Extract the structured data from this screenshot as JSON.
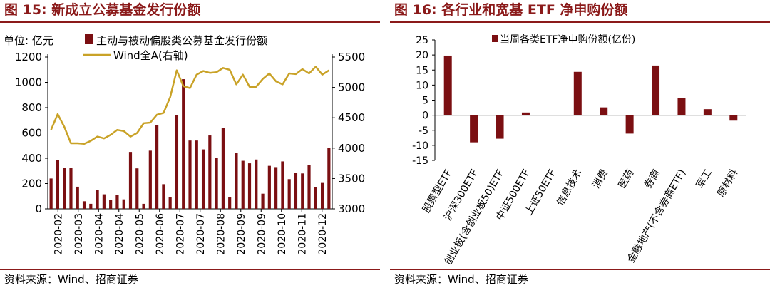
{
  "left": {
    "title": "图 15:  新成立公募基金发行份额",
    "source": "资料来源：Wind、招商证券",
    "chart_data": {
      "type": "bar+line",
      "unit_label": "单位:  亿元",
      "bar_series": {
        "name": "主动与被动偏股类公募基金发行份额",
        "color": "#7B0F12",
        "values": [
          240,
          385,
          325,
          325,
          175,
          60,
          40,
          150,
          115,
          70,
          110,
          75,
          450,
          320,
          40,
          460,
          660,
          195,
          90,
          740,
          1025,
          540,
          540,
          470,
          580,
          400,
          640,
          90,
          440,
          380,
          360,
          390,
          120,
          340,
          330,
          375,
          235,
          285,
          280,
          345,
          170,
          205,
          480
        ]
      },
      "line_series": {
        "name": "Wind全A(右轴)",
        "color": "#C9A227",
        "values": [
          4300,
          4560,
          4350,
          4080,
          4080,
          4070,
          4120,
          4190,
          4160,
          4220,
          4300,
          4280,
          4190,
          4250,
          4410,
          4420,
          4550,
          4580,
          4840,
          5280,
          5020,
          4990,
          5210,
          5270,
          5240,
          5250,
          5320,
          5290,
          5050,
          5210,
          5010,
          5010,
          5140,
          5230,
          5100,
          5050,
          5230,
          5220,
          5300,
          5230,
          5340,
          5210,
          5280
        ]
      },
      "y_left": {
        "min": 0,
        "max": 1200,
        "ticks": [
          "0",
          "200",
          "400",
          "600",
          "800",
          "1000",
          "1200"
        ]
      },
      "y_right": {
        "min": 3000,
        "max": 5500,
        "ticks": [
          "3000",
          "3500",
          "4000",
          "4500",
          "5000",
          "5500"
        ]
      },
      "x_labels": [
        "2020-02",
        "2020-03",
        "2020-04",
        "2020-04",
        "2020-05",
        "2020-06",
        "2020-07",
        "2020-07",
        "2020-08",
        "2020-09",
        "2020-09",
        "2020-10",
        "2020-11",
        "2020-12"
      ]
    }
  },
  "right": {
    "title": "图 16:  各行业和宽基 ETF 净申购份额",
    "source": "资料来源：Wind、招商证券",
    "chart_data": {
      "type": "bar",
      "legend": "当周各类ETF净申购份额(亿份)",
      "color": "#7B0F12",
      "categories": [
        "股票型ETF",
        "沪深300ETF",
        "创业板(含创业板50)ETF",
        "中证500ETF",
        "上证50ETF",
        "信息技术",
        "消费",
        "医药",
        "券商",
        "金融地产(不含券商ETF)",
        "军工",
        "原材料"
      ],
      "values": [
        19.8,
        -9.0,
        -7.8,
        0.9,
        0,
        14.4,
        2.6,
        -6.1,
        16.5,
        5.7,
        2.0,
        -1.8
      ],
      "y": {
        "min": -15,
        "max": 25,
        "ticks": [
          "25",
          "20",
          "15",
          "10",
          "5",
          "0",
          "-5",
          "-10",
          "-15"
        ]
      }
    }
  }
}
